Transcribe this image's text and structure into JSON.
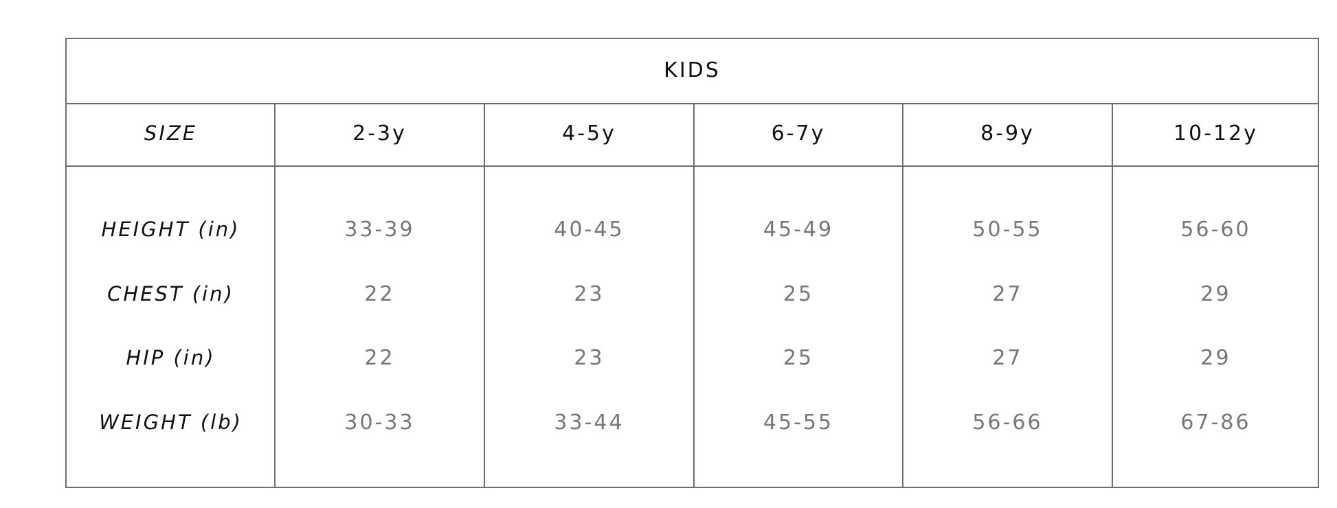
{
  "title": "KIDS",
  "header": {
    "label": "SIZE",
    "sizes": [
      "2-3y",
      "4-5y",
      "6-7y",
      "8-9y",
      "10-12y"
    ]
  },
  "rows": [
    {
      "label": "HEIGHT (in)",
      "values": [
        "33-39",
        "40-45",
        "45-49",
        "50-55",
        "56-60"
      ]
    },
    {
      "label": "CHEST (in)",
      "values": [
        "22",
        "23",
        "25",
        "27",
        "29"
      ]
    },
    {
      "label": "HIP (in)",
      "values": [
        "22",
        "23",
        "25",
        "27",
        "29"
      ]
    },
    {
      "label": "WEIGHT (lb)",
      "values": [
        "30-33",
        "33-44",
        "45-55",
        "56-66",
        "67-86"
      ]
    }
  ]
}
